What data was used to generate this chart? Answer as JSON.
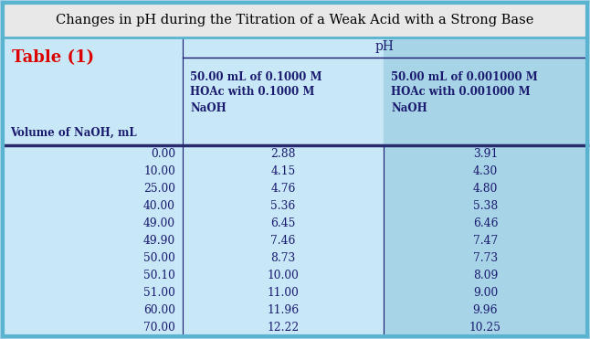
{
  "title": "Changes in pH during the Titration of a Weak Acid with a Strong Base",
  "table_label": "Table (1)",
  "col_headers": [
    "Volume of NaOH, mL",
    "50.00 mL of 0.1000 M\nHOAc with 0.1000 M\nNaOH",
    "50.00 mL of 0.001000 M\nHOAc with 0.001000 M\nNaOH"
  ],
  "ph_header": "pH",
  "rows": [
    [
      "0.00",
      "2.88",
      "3.91"
    ],
    [
      "10.00",
      "4.15",
      "4.30"
    ],
    [
      "25.00",
      "4.76",
      "4.80"
    ],
    [
      "40.00",
      "5.36",
      "5.38"
    ],
    [
      "49.00",
      "6.45",
      "6.46"
    ],
    [
      "49.90",
      "7.46",
      "7.47"
    ],
    [
      "50.00",
      "8.73",
      "7.73"
    ],
    [
      "50.10",
      "10.00",
      "8.09"
    ],
    [
      "51.00",
      "11.00",
      "9.00"
    ],
    [
      "60.00",
      "11.96",
      "9.96"
    ],
    [
      "70.00",
      "12.22",
      "10.25"
    ]
  ],
  "bg_title": "#e8e8e8",
  "bg_main": "#a8d4e8",
  "bg_col1_light": "#c8e8f8",
  "bg_col2_dark": "#a8d4e8",
  "border_color_outer": "#5ab4d0",
  "border_color_inner": "#2a2a6e",
  "title_fontsize": 10.5,
  "table_label_color": "#dd0000",
  "text_color": "#1a1a6e",
  "header_fontsize": 8.5,
  "data_fontsize": 8.8
}
